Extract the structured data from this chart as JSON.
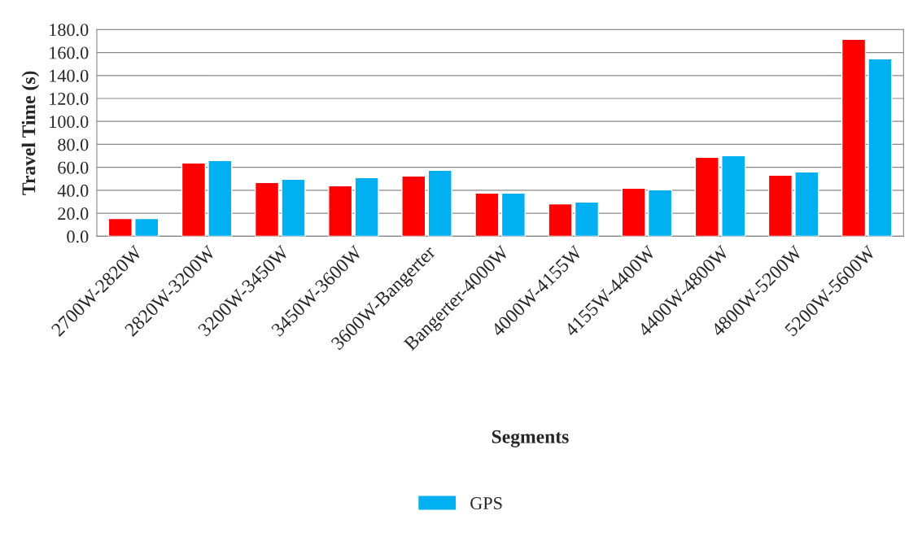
{
  "chart_data": {
    "type": "bar",
    "xlabel": "Segments",
    "ylabel": "Travel Time (s)",
    "categories": [
      "2700W-2820W",
      "2820W-3200W",
      "3200W-3450W",
      "3450W-3600W",
      "3600W-Bangerter",
      "Bangerter-4000W",
      "4000W-4155W",
      "4155W-4400W",
      "4400W-4800W",
      "4800W-5200W",
      "5200W-5600W"
    ],
    "series": [
      {
        "color": "#ff0000",
        "values": [
          15.5,
          63.8,
          46.8,
          44.0,
          52.4,
          37.6,
          28.3,
          41.8,
          68.7,
          53.2,
          171.5
        ]
      },
      {
        "name": "GPS",
        "color": "#00b0f0",
        "values": [
          15.5,
          65.9,
          49.6,
          51.0,
          57.4,
          37.6,
          29.8,
          40.4,
          70.2,
          56.0,
          154.5
        ]
      }
    ],
    "ylim": [
      0,
      180
    ],
    "yticks": [
      {
        "value": 0,
        "label": "0.0"
      },
      {
        "value": 20,
        "label": "20.0"
      },
      {
        "value": 40,
        "label": "40.0"
      },
      {
        "value": 60,
        "label": "60.0"
      },
      {
        "value": 80,
        "label": "80.0"
      },
      {
        "value": 100,
        "label": "100.0"
      },
      {
        "value": 120,
        "label": "120.0"
      },
      {
        "value": 140,
        "label": "140.0"
      },
      {
        "value": 160,
        "label": "160.0"
      },
      {
        "value": 180,
        "label": "180.0"
      }
    ],
    "grid": "y",
    "legend": "bottom"
  }
}
